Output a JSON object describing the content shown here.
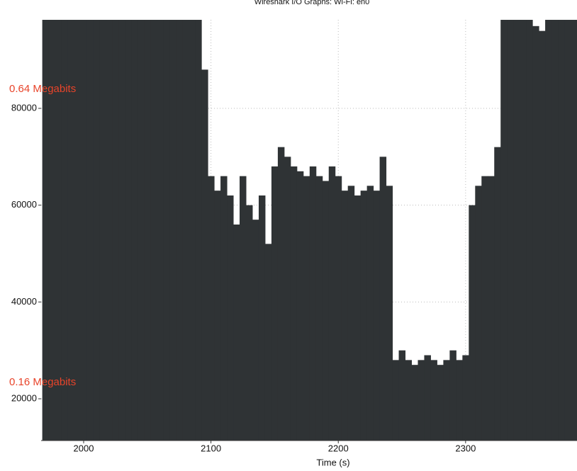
{
  "chart_data": {
    "type": "bar",
    "title": "Wireshark I/O Graphs: Wi-Fi: en0",
    "x_label": "Time (s)",
    "annotations": [
      "0.64 Megabits",
      "0.16 Megabits"
    ],
    "color": "#2f3335",
    "annotation_color": "#e8442a",
    "grid": true,
    "x": [
      1970,
      1975,
      1980,
      1985,
      1990,
      1995,
      2000,
      2005,
      2010,
      2015,
      2020,
      2025,
      2030,
      2035,
      2040,
      2045,
      2050,
      2055,
      2060,
      2065,
      2070,
      2075,
      2080,
      2085,
      2090,
      2095,
      2100,
      2105,
      2110,
      2115,
      2120,
      2125,
      2130,
      2135,
      2140,
      2145,
      2150,
      2155,
      2160,
      2165,
      2170,
      2175,
      2180,
      2185,
      2190,
      2195,
      2200,
      2205,
      2210,
      2215,
      2220,
      2225,
      2230,
      2235,
      2240,
      2245,
      2250,
      2255,
      2260,
      2265,
      2270,
      2275,
      2280,
      2285,
      2290,
      2295,
      2300,
      2305,
      2310,
      2315,
      2320,
      2325,
      2330,
      2335,
      2340,
      2345,
      2350,
      2355,
      2360,
      2365,
      2370,
      2375,
      2380,
      2385
    ],
    "values": [
      100000,
      100000,
      100000,
      100000,
      100000,
      100000,
      100000,
      100000,
      100000,
      100000,
      100000,
      100000,
      100000,
      100000,
      100000,
      100000,
      100000,
      100000,
      100000,
      100000,
      100000,
      100000,
      100000,
      100000,
      100000,
      88000,
      66000,
      63000,
      66000,
      62000,
      56000,
      66000,
      60000,
      57000,
      62000,
      52000,
      68000,
      72000,
      70000,
      68000,
      67000,
      66000,
      68000,
      66000,
      65000,
      68000,
      66000,
      63000,
      64000,
      62000,
      63000,
      64000,
      63000,
      70000,
      64000,
      28000,
      30000,
      28000,
      27000,
      28000,
      29000,
      28000,
      27000,
      28000,
      30000,
      28000,
      29000,
      60000,
      64000,
      66000,
      66000,
      72000,
      100000,
      100000,
      100000,
      100000,
      100000,
      97000,
      96000,
      100000,
      100000,
      100000,
      100000,
      100000
    ],
    "xlim": [
      1966.6,
      2387.5
    ],
    "ylim": [
      11370,
      98290
    ],
    "xticks": [
      2000,
      2100,
      2200,
      2300
    ],
    "yticks": [
      20000,
      40000,
      60000,
      80000
    ]
  }
}
